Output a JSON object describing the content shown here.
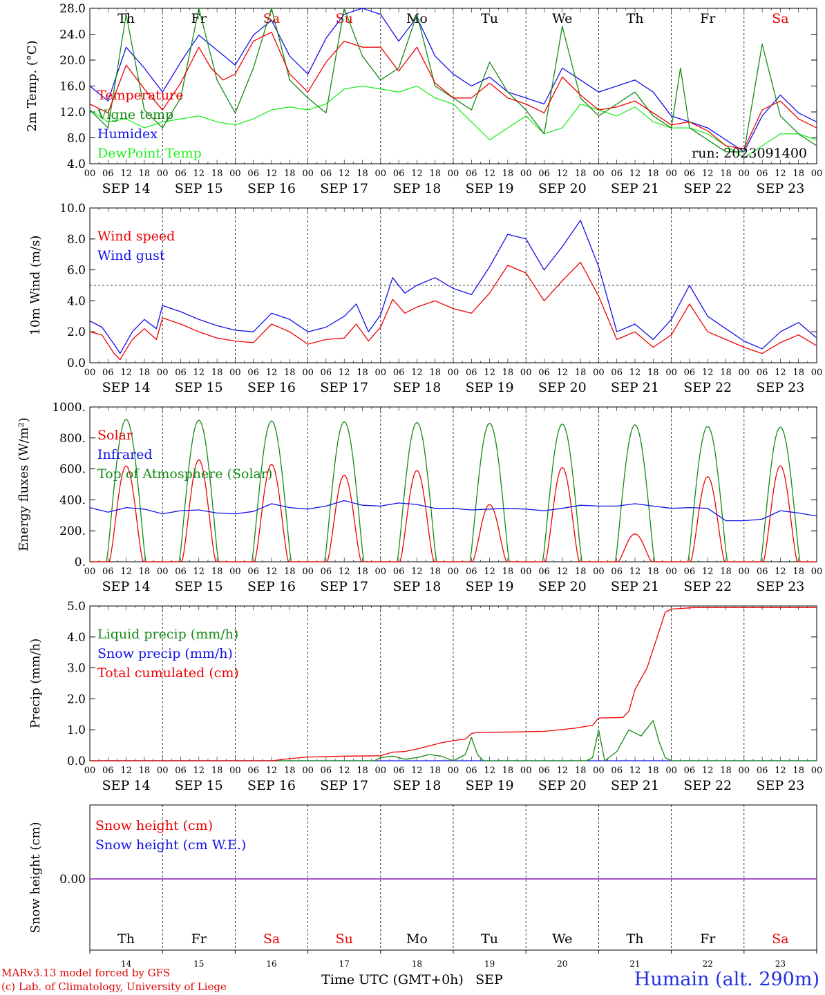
{
  "colors": {
    "red": "#ee0000",
    "blue": "#1010e8",
    "dark_green": "#138a13",
    "light_green": "#22ee22",
    "purple": "#8a2ad0",
    "black": "#000000"
  },
  "days": {
    "weekdays": [
      "Th",
      "Fr",
      "Sa",
      "Su",
      "Mo",
      "Tu",
      "We",
      "Th",
      "Fr",
      "Sa"
    ],
    "weekend_flags": [
      false,
      false,
      true,
      true,
      false,
      false,
      false,
      false,
      false,
      true
    ],
    "dates": [
      "SEP 14",
      "SEP 15",
      "SEP 16",
      "SEP 17",
      "SEP 18",
      "SEP 19",
      "SEP 20",
      "SEP 21",
      "SEP 22",
      "SEP 23"
    ],
    "day_numbers": [
      "14",
      "15",
      "16",
      "17",
      "18",
      "19",
      "20",
      "21",
      "22",
      "23"
    ],
    "hour_labels": [
      "00",
      "06",
      "12",
      "18"
    ],
    "end_hour_label": "00"
  },
  "footer": {
    "credit_line1": "MARv3.13 model forced by GFS",
    "credit_line2": "(c) Lab. of Climatology, University of Liege",
    "xaxis_title": "Time UTC (GMT+0h)",
    "month": "SEP",
    "station": "Humain (alt. 290m)"
  },
  "chart_data": [
    {
      "type": "line",
      "ylabel": "2m Temp. (°C)",
      "ylim": [
        4,
        30
      ],
      "yticks": [
        "4.0",
        "8.0",
        "12.0",
        "16.0",
        "20.0",
        "24.0",
        "28.0"
      ],
      "annotation": "run: 2023091400",
      "x_unit": "hours since 2023-09-14 00 UTC",
      "series": [
        {
          "name": "Temperature",
          "color": "#ee0000",
          "x": [
            0,
            6,
            12,
            18,
            24,
            30,
            36,
            40,
            44,
            48,
            54,
            60,
            66,
            72,
            78,
            84,
            90,
            96,
            102,
            108,
            114,
            120,
            126,
            132,
            138,
            144,
            150,
            156,
            162,
            168,
            174,
            180,
            186,
            192,
            198,
            204,
            210,
            216,
            222,
            228,
            234,
            240
          ],
          "y": [
            14,
            12.5,
            20.5,
            16.5,
            13,
            17.5,
            23.5,
            20,
            18,
            19,
            24.5,
            26,
            19,
            16,
            21,
            24.5,
            23.5,
            23.5,
            19.5,
            23.5,
            17.5,
            15,
            15,
            17.5,
            15,
            14,
            12.5,
            18.5,
            15.5,
            13,
            13.5,
            14.5,
            12.5,
            10.5,
            11,
            9.5,
            7,
            6.5,
            13,
            14.5,
            11.5,
            10
          ]
        },
        {
          "name": "Vigne temp",
          "color": "#138a13",
          "x": [
            0,
            6,
            12,
            18,
            24,
            30,
            36,
            42,
            48,
            54,
            60,
            66,
            72,
            78,
            84,
            90,
            96,
            102,
            108,
            114,
            120,
            126,
            132,
            138,
            144,
            150,
            156,
            162,
            168,
            174,
            180,
            186,
            192,
            195,
            198,
            204,
            210,
            216,
            222,
            228,
            234,
            240
          ],
          "y": [
            13,
            10,
            29,
            13,
            10,
            15,
            30,
            18,
            12.5,
            20,
            30,
            18,
            15,
            12.5,
            30,
            22,
            18,
            20,
            29,
            17,
            15,
            13,
            21,
            16,
            13,
            9,
            27,
            15,
            12,
            14,
            16,
            12,
            10,
            20,
            10,
            8,
            6,
            6,
            24,
            12,
            9,
            7
          ]
        },
        {
          "name": "Humidex",
          "color": "#1010e8",
          "x": [
            0,
            6,
            12,
            18,
            24,
            30,
            36,
            42,
            48,
            54,
            60,
            66,
            72,
            78,
            84,
            90,
            96,
            102,
            108,
            114,
            120,
            126,
            132,
            138,
            144,
            150,
            156,
            162,
            168,
            174,
            180,
            186,
            192,
            198,
            204,
            210,
            216,
            222,
            228,
            234,
            240
          ],
          "y": [
            17,
            14.5,
            23.5,
            20,
            16,
            21,
            25.5,
            23,
            20.5,
            25.5,
            28,
            22,
            19,
            25,
            29,
            30,
            29,
            24.5,
            28.5,
            22,
            19,
            17,
            18.5,
            16,
            15,
            14,
            20,
            18,
            16,
            17,
            18,
            16,
            12,
            11,
            10,
            8,
            6,
            12,
            15.5,
            12.5,
            11
          ]
        },
        {
          "name": "DewPoint Temp",
          "color": "#22ee22",
          "x": [
            0,
            6,
            12,
            18,
            24,
            30,
            36,
            42,
            48,
            54,
            60,
            66,
            72,
            78,
            84,
            90,
            96,
            102,
            108,
            114,
            120,
            126,
            132,
            138,
            144,
            150,
            156,
            162,
            168,
            174,
            180,
            186,
            192,
            198,
            204,
            210,
            216,
            222,
            228,
            234,
            240
          ],
          "y": [
            13,
            11,
            11.5,
            10,
            11,
            11.5,
            12,
            11,
            10.5,
            11.5,
            13,
            13.5,
            13,
            14,
            16.5,
            17,
            16.5,
            16,
            17,
            15,
            14,
            11,
            8,
            10,
            12,
            9,
            10,
            14,
            13,
            12,
            13.5,
            11,
            10,
            10,
            9,
            7,
            5,
            7,
            9,
            9,
            8
          ]
        }
      ]
    },
    {
      "type": "line",
      "ylabel": "10m Wind (m/s)",
      "ylim": [
        0,
        10
      ],
      "yticks": [
        "0.0",
        "2.0",
        "4.0",
        "6.0",
        "8.0",
        "10.0"
      ],
      "reference_line": 5,
      "x_unit": "hours since 2023-09-14 00 UTC",
      "series": [
        {
          "name": "Wind speed",
          "color": "#ee0000",
          "x": [
            0,
            4,
            8,
            10,
            14,
            18,
            22,
            24,
            30,
            36,
            42,
            48,
            54,
            60,
            66,
            72,
            78,
            84,
            88,
            92,
            96,
            100,
            104,
            108,
            114,
            120,
            126,
            132,
            138,
            144,
            150,
            156,
            162,
            168,
            174,
            180,
            186,
            192,
            198,
            204,
            210,
            216,
            222,
            228,
            234,
            240
          ],
          "y": [
            2,
            1.8,
            0.6,
            0.2,
            1.5,
            2.2,
            1.5,
            2.9,
            2.5,
            2,
            1.6,
            1.4,
            1.3,
            2.5,
            2,
            1.2,
            1.5,
            1.6,
            2.5,
            1.4,
            2.3,
            4.1,
            3.2,
            3.6,
            4,
            3.5,
            3.2,
            4.5,
            6.3,
            5.8,
            4,
            5.3,
            6.5,
            4.3,
            1.5,
            2,
            1,
            1.8,
            3.8,
            2,
            1.5,
            1,
            0.6,
            1.3,
            1.8,
            1.1
          ]
        },
        {
          "name": "Wind gust",
          "color": "#1010e8",
          "x": [
            0,
            4,
            8,
            10,
            14,
            18,
            22,
            24,
            30,
            36,
            42,
            48,
            54,
            60,
            66,
            72,
            78,
            84,
            88,
            92,
            96,
            100,
            104,
            108,
            114,
            120,
            126,
            132,
            138,
            144,
            150,
            156,
            162,
            168,
            174,
            180,
            186,
            192,
            198,
            204,
            210,
            216,
            222,
            228,
            234,
            240
          ],
          "y": [
            2.7,
            2.3,
            1.2,
            0.6,
            2,
            2.8,
            2.2,
            3.7,
            3.3,
            2.8,
            2.4,
            2.1,
            2,
            3.2,
            2.8,
            2,
            2.3,
            3,
            3.8,
            2,
            3.1,
            5.5,
            4.5,
            5,
            5.5,
            4.8,
            4.4,
            6.2,
            8.3,
            8,
            6,
            7.5,
            9.2,
            6.2,
            2,
            2.5,
            1.5,
            2.8,
            5,
            3,
            2.2,
            1.4,
            0.9,
            2,
            2.6,
            1.6
          ]
        }
      ]
    },
    {
      "type": "line",
      "ylabel": "Energy fluxes (W/m²)",
      "ylim": [
        0,
        1000
      ],
      "yticks": [
        "0.",
        "200.",
        "400.",
        "600.",
        "800.",
        "1000."
      ],
      "x_unit": "hours since 2023-09-14 00 UTC",
      "toa_peaks": [
        920,
        915,
        910,
        905,
        900,
        895,
        890,
        885,
        875,
        870
      ],
      "solar_peaks": [
        620,
        660,
        630,
        560,
        590,
        370,
        610,
        180,
        550,
        620
      ],
      "series": [
        {
          "name": "Solar",
          "color": "#ee0000"
        },
        {
          "name": "Infrared",
          "color": "#1010e8",
          "x": [
            0,
            6,
            12,
            18,
            24,
            30,
            36,
            42,
            48,
            54,
            60,
            66,
            72,
            78,
            84,
            90,
            96,
            102,
            108,
            114,
            120,
            126,
            132,
            138,
            144,
            150,
            156,
            162,
            168,
            174,
            180,
            186,
            192,
            198,
            204,
            210,
            216,
            222,
            228,
            234,
            240
          ],
          "y": [
            350,
            320,
            350,
            340,
            310,
            330,
            335,
            315,
            310,
            325,
            375,
            350,
            340,
            360,
            395,
            365,
            360,
            380,
            370,
            345,
            345,
            335,
            340,
            345,
            340,
            330,
            345,
            365,
            360,
            360,
            375,
            360,
            345,
            350,
            345,
            265,
            265,
            275,
            330,
            315,
            295
          ]
        },
        {
          "name": "Top of Atmosphere (Solar)",
          "color": "#138a13"
        }
      ]
    },
    {
      "type": "line",
      "ylabel": "Precip (mm/h)",
      "ylim": [
        0,
        5
      ],
      "yticks": [
        "0.0",
        "1.0",
        "2.0",
        "3.0",
        "4.0",
        "5.0"
      ],
      "x_unit": "hours since 2023-09-14 00 UTC",
      "series": [
        {
          "name": "Liquid precip (mm/h)",
          "color": "#138a13",
          "x": [
            0,
            94,
            96,
            100,
            104,
            108,
            112,
            116,
            120,
            124,
            126,
            128,
            130,
            132,
            134,
            164,
            166,
            168,
            170,
            174,
            178,
            182,
            186,
            188,
            190,
            192,
            240
          ],
          "y": [
            0,
            0,
            0.1,
            0.15,
            0.05,
            0.1,
            0.2,
            0.15,
            0,
            0.2,
            0.75,
            0.2,
            0,
            0,
            0,
            0,
            0.1,
            1.0,
            0,
            0.3,
            1.0,
            0.8,
            1.3,
            0.6,
            0.1,
            0,
            0
          ]
        },
        {
          "name": "Snow precip (mm/h)",
          "color": "#1010e8",
          "x": [
            0,
            240
          ],
          "y": [
            0,
            0
          ]
        },
        {
          "name": "Total cumulated (cm)",
          "color": "#ee0000",
          "x": [
            0,
            60,
            66,
            72,
            84,
            96,
            100,
            104,
            108,
            112,
            116,
            120,
            124,
            126,
            128,
            132,
            140,
            150,
            160,
            166,
            168,
            176,
            178,
            180,
            184,
            188,
            190,
            192,
            200,
            240
          ],
          "y": [
            0,
            0,
            0.07,
            0.12,
            0.15,
            0.16,
            0.28,
            0.3,
            0.38,
            0.48,
            0.58,
            0.65,
            0.7,
            0.88,
            0.92,
            0.92,
            0.93,
            0.95,
            1.05,
            1.15,
            1.38,
            1.4,
            1.6,
            2.3,
            3.0,
            4.2,
            4.8,
            4.9,
            4.95,
            4.95
          ]
        }
      ]
    },
    {
      "type": "line",
      "ylabel": "Snow height (cm)",
      "yticks": [
        "0.00"
      ],
      "x_unit": "hours since 2023-09-14 00 UTC",
      "series": [
        {
          "name": "Snow height (cm)",
          "color": "#ee0000",
          "x": [
            0,
            240
          ],
          "y": [
            0,
            0
          ]
        },
        {
          "name": "Snow height (cm W.E.)",
          "color": "#1010e8",
          "x": [
            0,
            240
          ],
          "y": [
            0,
            0
          ]
        }
      ]
    }
  ]
}
